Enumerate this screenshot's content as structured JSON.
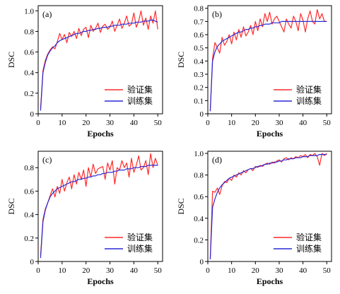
{
  "colors": {
    "validation": "#ff2a2a",
    "training": "#2a2ad6"
  },
  "chart_data": [
    {
      "panel_label": "(a)",
      "type": "line",
      "xlabel": "Epochs",
      "ylabel": "DSC",
      "xlim": [
        0,
        52
      ],
      "ylim": [
        0,
        1.05
      ],
      "xticks": [
        "0",
        "10",
        "20",
        "30",
        "40",
        "50"
      ],
      "yticks": [
        "0",
        "0.2",
        "0.4",
        "0.6",
        "0.8",
        "1.0"
      ],
      "legend_position": "bottom-right",
      "grid": false,
      "series": [
        {
          "name": "验证集",
          "color_key": "validation",
          "x": [
            1,
            2,
            3,
            4,
            5,
            6,
            7,
            8,
            9,
            10,
            11,
            12,
            13,
            14,
            15,
            16,
            17,
            18,
            19,
            20,
            21,
            22,
            23,
            24,
            25,
            26,
            27,
            28,
            29,
            30,
            31,
            32,
            33,
            34,
            35,
            36,
            37,
            38,
            39,
            40,
            41,
            42,
            43,
            44,
            45,
            46,
            47,
            48,
            49,
            50
          ],
          "values": [
            0.05,
            0.42,
            0.52,
            0.58,
            0.62,
            0.65,
            0.63,
            0.7,
            0.78,
            0.72,
            0.77,
            0.69,
            0.79,
            0.75,
            0.8,
            0.73,
            0.83,
            0.76,
            0.82,
            0.84,
            0.74,
            0.86,
            0.8,
            0.83,
            0.88,
            0.79,
            0.85,
            0.87,
            0.82,
            0.84,
            0.9,
            0.8,
            0.86,
            0.92,
            0.83,
            0.88,
            0.95,
            0.85,
            0.87,
            0.98,
            0.84,
            0.9,
            1.0,
            0.86,
            0.93,
            0.82,
            0.95,
            0.88,
            1.0,
            0.82
          ]
        },
        {
          "name": "训练集",
          "color_key": "training",
          "x": [
            1,
            2,
            3,
            4,
            5,
            6,
            7,
            8,
            9,
            10,
            11,
            12,
            13,
            14,
            15,
            16,
            17,
            18,
            19,
            20,
            21,
            22,
            23,
            24,
            25,
            26,
            27,
            28,
            29,
            30,
            31,
            32,
            33,
            34,
            35,
            36,
            37,
            38,
            39,
            40,
            41,
            42,
            43,
            44,
            45,
            46,
            47,
            48,
            49,
            50
          ],
          "values": [
            0.03,
            0.4,
            0.5,
            0.57,
            0.61,
            0.64,
            0.66,
            0.69,
            0.71,
            0.72,
            0.73,
            0.74,
            0.75,
            0.76,
            0.77,
            0.78,
            0.78,
            0.79,
            0.8,
            0.8,
            0.81,
            0.81,
            0.82,
            0.82,
            0.83,
            0.83,
            0.84,
            0.84,
            0.84,
            0.85,
            0.85,
            0.86,
            0.86,
            0.86,
            0.87,
            0.87,
            0.87,
            0.88,
            0.88,
            0.88,
            0.89,
            0.89,
            0.89,
            0.9,
            0.9,
            0.9,
            0.91,
            0.91,
            0.9,
            0.89
          ]
        }
      ]
    },
    {
      "panel_label": "(b)",
      "type": "line",
      "xlabel": "Epochs",
      "ylabel": "DSC",
      "xlim": [
        0,
        52
      ],
      "ylim": [
        0,
        0.82
      ],
      "xticks": [
        "0",
        "10",
        "20",
        "30",
        "40",
        "50"
      ],
      "yticks": [
        "0",
        "0.1",
        "0.2",
        "0.3",
        "0.4",
        "0.5",
        "0.6",
        "0.7",
        "0.8"
      ],
      "legend_position": "bottom-right",
      "grid": false,
      "series": [
        {
          "name": "验证集",
          "color_key": "validation",
          "x": [
            1,
            2,
            3,
            4,
            5,
            6,
            7,
            8,
            9,
            10,
            11,
            12,
            13,
            14,
            15,
            16,
            17,
            18,
            19,
            20,
            21,
            22,
            23,
            24,
            25,
            26,
            27,
            28,
            29,
            30,
            31,
            32,
            33,
            34,
            35,
            36,
            37,
            38,
            39,
            40,
            41,
            42,
            43,
            44,
            45,
            46,
            47,
            48,
            49,
            50
          ],
          "values": [
            0.02,
            0.42,
            0.54,
            0.5,
            0.46,
            0.58,
            0.52,
            0.55,
            0.6,
            0.53,
            0.62,
            0.56,
            0.64,
            0.58,
            0.66,
            0.59,
            0.62,
            0.67,
            0.6,
            0.7,
            0.63,
            0.72,
            0.66,
            0.76,
            0.7,
            0.77,
            0.68,
            0.72,
            0.74,
            0.7,
            0.66,
            0.62,
            0.72,
            0.68,
            0.65,
            0.74,
            0.7,
            0.63,
            0.76,
            0.71,
            0.62,
            0.72,
            0.78,
            0.7,
            0.68,
            0.79,
            0.72,
            0.76,
            0.7,
            0.7
          ]
        },
        {
          "name": "训练集",
          "color_key": "training",
          "x": [
            1,
            2,
            3,
            4,
            5,
            6,
            7,
            8,
            9,
            10,
            11,
            12,
            13,
            14,
            15,
            16,
            17,
            18,
            19,
            20,
            21,
            22,
            23,
            24,
            25,
            26,
            27,
            28,
            29,
            30,
            31,
            32,
            33,
            34,
            35,
            36,
            37,
            38,
            39,
            40,
            41,
            42,
            43,
            44,
            45,
            46,
            47,
            48,
            49,
            50
          ],
          "values": [
            0.02,
            0.4,
            0.47,
            0.51,
            0.53,
            0.55,
            0.56,
            0.57,
            0.58,
            0.59,
            0.6,
            0.61,
            0.62,
            0.62,
            0.63,
            0.64,
            0.64,
            0.65,
            0.65,
            0.66,
            0.66,
            0.67,
            0.67,
            0.68,
            0.68,
            0.68,
            0.69,
            0.69,
            0.69,
            0.69,
            0.7,
            0.7,
            0.7,
            0.7,
            0.7,
            0.7,
            0.7,
            0.7,
            0.7,
            0.7,
            0.7,
            0.7,
            0.7,
            0.7,
            0.7,
            0.7,
            0.7,
            0.7,
            0.7,
            0.7
          ]
        }
      ]
    },
    {
      "panel_label": "(c)",
      "type": "line",
      "xlabel": "Epochs",
      "ylabel": "DSC",
      "xlim": [
        0,
        52
      ],
      "ylim": [
        0,
        0.94
      ],
      "xticks": [
        "0",
        "10",
        "20",
        "30",
        "40",
        "50"
      ],
      "yticks": [
        "0",
        "0.2",
        "0.4",
        "0.6",
        "0.8"
      ],
      "legend_position": "bottom-right",
      "grid": false,
      "series": [
        {
          "name": "验证集",
          "color_key": "validation",
          "x": [
            1,
            2,
            3,
            4,
            5,
            6,
            7,
            8,
            9,
            10,
            11,
            12,
            13,
            14,
            15,
            16,
            17,
            18,
            19,
            20,
            21,
            22,
            23,
            24,
            25,
            26,
            27,
            28,
            29,
            30,
            31,
            32,
            33,
            34,
            35,
            36,
            37,
            38,
            39,
            40,
            41,
            42,
            43,
            44,
            45,
            46,
            47,
            48,
            49,
            50
          ],
          "values": [
            0.05,
            0.36,
            0.45,
            0.5,
            0.56,
            0.62,
            0.55,
            0.64,
            0.58,
            0.7,
            0.6,
            0.67,
            0.72,
            0.62,
            0.74,
            0.66,
            0.76,
            0.7,
            0.78,
            0.64,
            0.8,
            0.72,
            0.83,
            0.75,
            0.79,
            0.8,
            0.81,
            0.7,
            0.84,
            0.78,
            0.86,
            0.66,
            0.8,
            0.78,
            0.86,
            0.8,
            0.84,
            0.72,
            0.88,
            0.76,
            0.82,
            0.9,
            0.78,
            0.8,
            0.86,
            0.74,
            0.92,
            0.8,
            0.88,
            0.82
          ]
        },
        {
          "name": "训练集",
          "color_key": "training",
          "x": [
            1,
            2,
            3,
            4,
            5,
            6,
            7,
            8,
            9,
            10,
            11,
            12,
            13,
            14,
            15,
            16,
            17,
            18,
            19,
            20,
            21,
            22,
            23,
            24,
            25,
            26,
            27,
            28,
            29,
            30,
            31,
            32,
            33,
            34,
            35,
            36,
            37,
            38,
            39,
            40,
            41,
            42,
            43,
            44,
            45,
            46,
            47,
            48,
            49,
            50
          ],
          "values": [
            0.03,
            0.34,
            0.44,
            0.5,
            0.55,
            0.58,
            0.6,
            0.62,
            0.63,
            0.64,
            0.65,
            0.66,
            0.67,
            0.68,
            0.68,
            0.69,
            0.7,
            0.7,
            0.71,
            0.71,
            0.72,
            0.72,
            0.73,
            0.73,
            0.74,
            0.74,
            0.75,
            0.75,
            0.76,
            0.76,
            0.76,
            0.77,
            0.77,
            0.78,
            0.78,
            0.78,
            0.79,
            0.79,
            0.79,
            0.8,
            0.8,
            0.8,
            0.81,
            0.81,
            0.81,
            0.82,
            0.82,
            0.82,
            0.82,
            0.82
          ]
        }
      ]
    },
    {
      "panel_label": "(d)",
      "type": "line",
      "xlabel": "Epochs",
      "ylabel": "DSC",
      "xlim": [
        0,
        52
      ],
      "ylim": [
        0,
        1.02
      ],
      "xticks": [
        "0",
        "10",
        "20",
        "30",
        "40",
        "50"
      ],
      "yticks": [
        "0",
        "0.2",
        "0.4",
        "0.6",
        "0.8",
        "1.0"
      ],
      "legend_position": "bottom-right",
      "grid": false,
      "series": [
        {
          "name": "验证集",
          "color_key": "validation",
          "x": [
            1,
            2,
            3,
            4,
            5,
            6,
            7,
            8,
            9,
            10,
            11,
            12,
            13,
            14,
            15,
            16,
            17,
            18,
            19,
            20,
            21,
            22,
            23,
            24,
            25,
            26,
            27,
            28,
            29,
            30,
            31,
            32,
            33,
            34,
            35,
            36,
            37,
            38,
            39,
            40,
            41,
            42,
            43,
            44,
            45,
            46,
            47,
            48,
            49,
            50
          ],
          "values": [
            0.02,
            0.65,
            0.64,
            0.68,
            0.62,
            0.7,
            0.74,
            0.73,
            0.77,
            0.75,
            0.8,
            0.78,
            0.82,
            0.8,
            0.84,
            0.82,
            0.85,
            0.86,
            0.84,
            0.88,
            0.87,
            0.89,
            0.88,
            0.9,
            0.91,
            0.9,
            0.92,
            0.91,
            0.93,
            0.94,
            0.92,
            0.95,
            0.96,
            0.94,
            0.96,
            0.95,
            0.97,
            0.96,
            0.98,
            0.97,
            0.99,
            0.96,
            0.99,
            0.98,
            1.0,
            0.97,
            0.89,
            1.0,
            0.98,
            1.0
          ]
        },
        {
          "name": "训练集",
          "color_key": "training",
          "x": [
            1,
            2,
            3,
            4,
            5,
            6,
            7,
            8,
            9,
            10,
            11,
            12,
            13,
            14,
            15,
            16,
            17,
            18,
            19,
            20,
            21,
            22,
            23,
            24,
            25,
            26,
            27,
            28,
            29,
            30,
            31,
            32,
            33,
            34,
            35,
            36,
            37,
            38,
            39,
            40,
            41,
            42,
            43,
            44,
            45,
            46,
            47,
            48,
            49,
            50
          ],
          "values": [
            0.02,
            0.5,
            0.58,
            0.64,
            0.68,
            0.71,
            0.73,
            0.75,
            0.77,
            0.78,
            0.79,
            0.8,
            0.81,
            0.82,
            0.83,
            0.84,
            0.85,
            0.86,
            0.86,
            0.87,
            0.88,
            0.88,
            0.89,
            0.9,
            0.9,
            0.91,
            0.91,
            0.92,
            0.92,
            0.93,
            0.93,
            0.94,
            0.94,
            0.95,
            0.95,
            0.95,
            0.96,
            0.96,
            0.96,
            0.97,
            0.97,
            0.97,
            0.98,
            0.98,
            0.98,
            0.98,
            0.99,
            0.99,
            0.99,
            0.99
          ]
        }
      ]
    }
  ]
}
